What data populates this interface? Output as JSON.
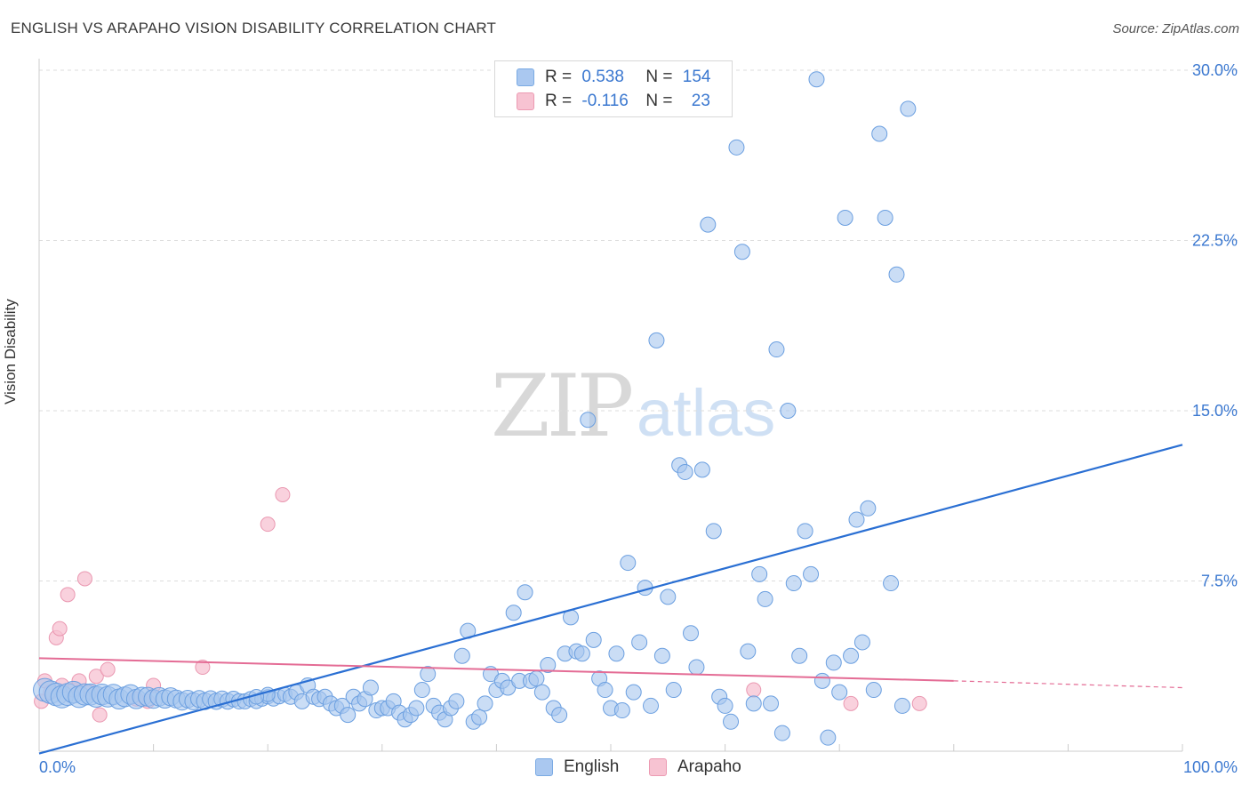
{
  "title": "ENGLISH VS ARAPAHO VISION DISABILITY CORRELATION CHART",
  "source": "Source: ZipAtlas.com",
  "watermark": {
    "zip": "ZIP",
    "atlas": "atlas"
  },
  "legend": {
    "rows": [
      {
        "r_label": "R =",
        "r_value": "0.538",
        "n_label": "N =",
        "n_value": "154",
        "color": "#aac8f0",
        "border": "#7aaae3"
      },
      {
        "r_label": "R =",
        "r_value": "-0.116",
        "n_label": "N =",
        "n_value": "23",
        "color": "#f7c3d2",
        "border": "#ec9ab2"
      }
    ]
  },
  "bottom_legend": [
    "English",
    "Arapaho"
  ],
  "colors": {
    "english_fill": "#a7c6ee",
    "english_stroke": "#6b9fe0",
    "english_line": "#2a6fd3",
    "arapaho_fill": "#f7c2d1",
    "arapaho_stroke": "#ea98b1",
    "arapaho_line": "#e46c95",
    "grid": "#dddddd",
    "tick_label": "#3b78d0"
  },
  "chart_data": {
    "type": "scatter",
    "title": "ENGLISH VS ARAPAHO VISION DISABILITY CORRELATION CHART",
    "xlabel": "",
    "ylabel": "Vision Disability",
    "xlim": [
      0,
      100
    ],
    "ylim": [
      0,
      30
    ],
    "x_tick_labels": [
      "0.0%",
      "100.0%"
    ],
    "y_ticks": [
      7.5,
      15.0,
      22.5,
      30.0
    ],
    "y_tick_labels": [
      "7.5%",
      "15.0%",
      "22.5%",
      "30.0%"
    ],
    "grid": true,
    "legend_position": "top-center",
    "series": [
      {
        "name": "English",
        "R": 0.538,
        "N": 154,
        "trend": {
          "x": [
            0,
            100
          ],
          "y": [
            -0.1,
            13.5
          ]
        },
        "points": [
          [
            0.5,
            2.7
          ],
          [
            1.0,
            2.6
          ],
          [
            1.5,
            2.5
          ],
          [
            2.0,
            2.4
          ],
          [
            2.5,
            2.5
          ],
          [
            3.0,
            2.6
          ],
          [
            3.5,
            2.4
          ],
          [
            4.0,
            2.5
          ],
          [
            4.5,
            2.5
          ],
          [
            5.0,
            2.4
          ],
          [
            5.5,
            2.5
          ],
          [
            6.0,
            2.4
          ],
          [
            6.5,
            2.5
          ],
          [
            7.0,
            2.3
          ],
          [
            7.5,
            2.4
          ],
          [
            8.0,
            2.5
          ],
          [
            8.5,
            2.3
          ],
          [
            9.0,
            2.4
          ],
          [
            9.5,
            2.4
          ],
          [
            10.0,
            2.3
          ],
          [
            10.5,
            2.4
          ],
          [
            11.0,
            2.3
          ],
          [
            11.5,
            2.4
          ],
          [
            12.0,
            2.3
          ],
          [
            12.5,
            2.2
          ],
          [
            13.0,
            2.3
          ],
          [
            13.5,
            2.2
          ],
          [
            14.0,
            2.3
          ],
          [
            14.5,
            2.2
          ],
          [
            15.0,
            2.3
          ],
          [
            15.5,
            2.2
          ],
          [
            16.0,
            2.3
          ],
          [
            16.5,
            2.2
          ],
          [
            17.0,
            2.3
          ],
          [
            17.5,
            2.2
          ],
          [
            18.0,
            2.2
          ],
          [
            18.5,
            2.3
          ],
          [
            19.0,
            2.2
          ],
          [
            19.5,
            2.3
          ],
          [
            20.0,
            2.4
          ],
          [
            20.5,
            2.3
          ],
          [
            21.0,
            2.4
          ],
          [
            21.5,
            2.5
          ],
          [
            22.0,
            2.4
          ],
          [
            22.5,
            2.6
          ],
          [
            23.0,
            2.2
          ],
          [
            23.5,
            2.9
          ],
          [
            24.0,
            2.4
          ],
          [
            24.5,
            2.3
          ],
          [
            25.0,
            2.4
          ],
          [
            25.5,
            2.1
          ],
          [
            26.0,
            1.9
          ],
          [
            26.5,
            2.0
          ],
          [
            27.0,
            1.6
          ],
          [
            27.5,
            2.4
          ],
          [
            28.0,
            2.1
          ],
          [
            28.5,
            2.3
          ],
          [
            29.0,
            2.8
          ],
          [
            29.5,
            1.8
          ],
          [
            30.0,
            1.9
          ],
          [
            30.5,
            1.9
          ],
          [
            31.0,
            2.2
          ],
          [
            31.5,
            1.7
          ],
          [
            32.0,
            1.4
          ],
          [
            32.5,
            1.6
          ],
          [
            33.0,
            1.9
          ],
          [
            33.5,
            2.7
          ],
          [
            34.0,
            3.4
          ],
          [
            34.5,
            2.0
          ],
          [
            35.0,
            1.7
          ],
          [
            35.5,
            1.4
          ],
          [
            36.0,
            1.9
          ],
          [
            36.5,
            2.2
          ],
          [
            37.0,
            4.2
          ],
          [
            37.5,
            5.3
          ],
          [
            38.0,
            1.3
          ],
          [
            38.5,
            1.5
          ],
          [
            39.0,
            2.1
          ],
          [
            39.5,
            3.4
          ],
          [
            40.0,
            2.7
          ],
          [
            40.5,
            3.1
          ],
          [
            41.0,
            2.8
          ],
          [
            41.5,
            6.1
          ],
          [
            42.0,
            3.1
          ],
          [
            42.5,
            7.0
          ],
          [
            43.0,
            3.1
          ],
          [
            43.5,
            3.2
          ],
          [
            44.0,
            2.6
          ],
          [
            44.5,
            3.8
          ],
          [
            45.0,
            1.9
          ],
          [
            45.5,
            1.6
          ],
          [
            46.0,
            4.3
          ],
          [
            46.5,
            5.9
          ],
          [
            47.0,
            4.4
          ],
          [
            47.5,
            4.3
          ],
          [
            48.0,
            14.6
          ],
          [
            48.5,
            4.9
          ],
          [
            49.0,
            3.2
          ],
          [
            49.5,
            2.7
          ],
          [
            50.0,
            1.9
          ],
          [
            50.5,
            4.3
          ],
          [
            51.0,
            1.8
          ],
          [
            51.5,
            8.3
          ],
          [
            52.0,
            2.6
          ],
          [
            52.5,
            4.8
          ],
          [
            53.0,
            7.2
          ],
          [
            53.5,
            2.0
          ],
          [
            54.0,
            18.1
          ],
          [
            54.5,
            4.2
          ],
          [
            55.0,
            6.8
          ],
          [
            55.5,
            2.7
          ],
          [
            56.0,
            12.6
          ],
          [
            56.5,
            12.3
          ],
          [
            57.0,
            5.2
          ],
          [
            57.5,
            3.7
          ],
          [
            58.0,
            12.4
          ],
          [
            58.5,
            23.2
          ],
          [
            59.0,
            9.7
          ],
          [
            59.5,
            2.4
          ],
          [
            60.0,
            2.0
          ],
          [
            60.5,
            1.3
          ],
          [
            61.0,
            26.6
          ],
          [
            61.5,
            22.0
          ],
          [
            62.0,
            4.4
          ],
          [
            62.5,
            2.1
          ],
          [
            63.0,
            7.8
          ],
          [
            63.5,
            6.7
          ],
          [
            64.0,
            2.1
          ],
          [
            64.5,
            17.7
          ],
          [
            65.0,
            0.8
          ],
          [
            65.5,
            15.0
          ],
          [
            66.0,
            7.4
          ],
          [
            66.5,
            4.2
          ],
          [
            67.0,
            9.7
          ],
          [
            67.5,
            7.8
          ],
          [
            68.0,
            29.6
          ],
          [
            68.5,
            3.1
          ],
          [
            69.0,
            0.6
          ],
          [
            69.5,
            3.9
          ],
          [
            70.0,
            2.6
          ],
          [
            70.5,
            23.5
          ],
          [
            71.0,
            4.2
          ],
          [
            71.5,
            10.2
          ],
          [
            72.0,
            4.8
          ],
          [
            72.5,
            10.7
          ],
          [
            73.0,
            2.7
          ],
          [
            73.5,
            27.2
          ],
          [
            74.0,
            23.5
          ],
          [
            74.5,
            7.4
          ],
          [
            75.0,
            21.0
          ],
          [
            75.5,
            2.0
          ],
          [
            76.0,
            28.3
          ],
          [
            20.0,
            2.5
          ],
          [
            19.0,
            2.4
          ]
        ]
      },
      {
        "name": "Arapaho",
        "R": -0.116,
        "N": 23,
        "trend": {
          "x": [
            0,
            80,
            100
          ],
          "y": [
            4.1,
            3.1,
            2.8
          ]
        },
        "points": [
          [
            0.2,
            2.2
          ],
          [
            0.5,
            3.1
          ],
          [
            1.0,
            2.6
          ],
          [
            1.5,
            5.0
          ],
          [
            1.8,
            5.4
          ],
          [
            2.0,
            2.9
          ],
          [
            2.5,
            6.9
          ],
          [
            3.0,
            2.7
          ],
          [
            3.5,
            3.1
          ],
          [
            4.0,
            7.6
          ],
          [
            4.5,
            2.6
          ],
          [
            5.0,
            3.3
          ],
          [
            5.3,
            1.6
          ],
          [
            6.0,
            3.6
          ],
          [
            9.5,
            2.2
          ],
          [
            10.0,
            2.9
          ],
          [
            14.3,
            3.7
          ],
          [
            20.0,
            10.0
          ],
          [
            21.3,
            11.3
          ],
          [
            62.5,
            2.7
          ],
          [
            71.0,
            2.1
          ],
          [
            77.0,
            2.1
          ],
          [
            8.5,
            2.3
          ]
        ]
      }
    ]
  }
}
